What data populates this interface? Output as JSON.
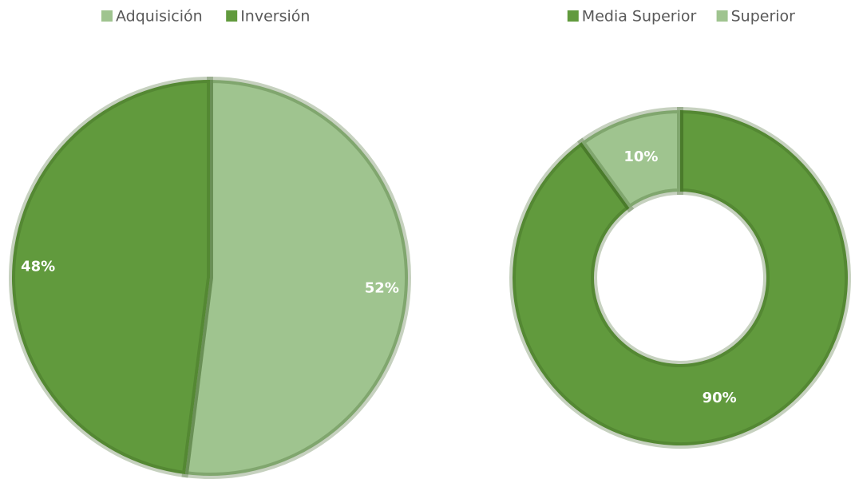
{
  "chart_data": [
    {
      "type": "pie",
      "categories": [
        "Adquisición",
        "Inversión"
      ],
      "values": [
        52,
        48
      ],
      "value_labels": [
        "52%",
        "48%"
      ],
      "colors": [
        "#9fc48f",
        "#619a3d"
      ],
      "legend": "top"
    },
    {
      "type": "donut",
      "categories": [
        "Media Superior",
        "Superior"
      ],
      "values": [
        90,
        10
      ],
      "value_labels": [
        "90%",
        "10%"
      ],
      "colors": [
        "#619a3d",
        "#9fc48f"
      ],
      "legend": "top"
    }
  ]
}
